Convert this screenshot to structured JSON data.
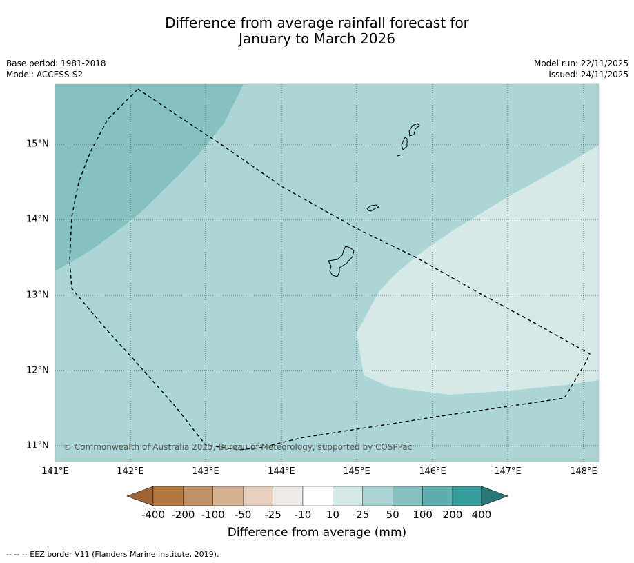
{
  "title_line1": "Difference from average rainfall forecast for",
  "title_line2": "January to March 2026",
  "base_period": "Base period: 1981-2018",
  "model": "Model: ACCESS-S2",
  "model_run": "Model run: 22/11/2025",
  "issued": "Issued: 24/11/2025",
  "copyright": "© Commonwealth of Australia 2025, Bureau of Meteorology, supported by COSPPac",
  "x_ticks": [
    "141°E",
    "142°E",
    "143°E",
    "144°E",
    "145°E",
    "146°E",
    "147°E",
    "148°E"
  ],
  "y_ticks": [
    "15°N",
    "14°N",
    "13°N",
    "12°N",
    "11°N"
  ],
  "colorbar": {
    "labels": [
      "-400",
      "-200",
      "-100",
      "-50",
      "-25",
      "-10",
      "10",
      "25",
      "50",
      "100",
      "200",
      "400"
    ],
    "colors": [
      "#9f6536",
      "#b1783e",
      "#c09066",
      "#d5b291",
      "#e7d1be",
      "#efebe7",
      "#ffffff",
      "#d4e8e7",
      "#acd5d5",
      "#84c1c0",
      "#5eaeaf",
      "#369b9b",
      "#2a7778"
    ],
    "title": "Difference from average (mm)"
  },
  "footnote": "--  --  -- EEZ border V11 (Flanders Marine Institute, 2019).",
  "map_colors": {
    "cat_10_25": "#d4e8e7",
    "cat_25_50": "#acd5d5",
    "cat_50_100": "#84c1c0"
  }
}
